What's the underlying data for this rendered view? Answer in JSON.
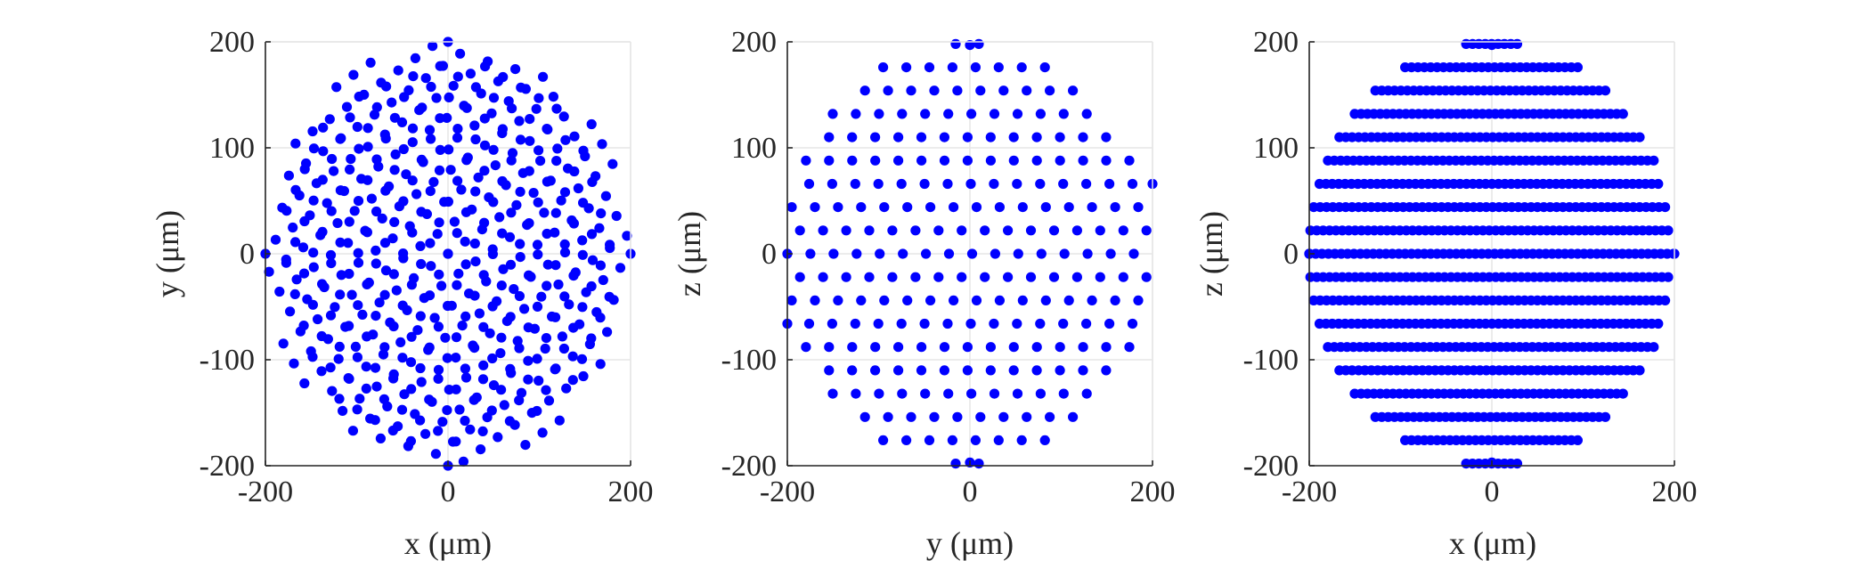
{
  "figure": {
    "marker_color": "#0000ff",
    "axis_color": "#262626",
    "grid_color": "#e6e6e6"
  },
  "chart_data": [
    {
      "type": "scatter",
      "xlabel": "x (μm)",
      "ylabel": "y (μm)",
      "xlim": [
        -200,
        200
      ],
      "ylim": [
        -200,
        200
      ],
      "xticks": [
        -200,
        0,
        200
      ],
      "yticks": [
        -200,
        -100,
        0,
        100,
        200
      ],
      "xtick_labels": [
        "-200",
        "0",
        "200"
      ],
      "ytick_labels": [
        "-200",
        "-100",
        "0",
        "100",
        "200"
      ],
      "grid": true,
      "points_note": "dense spherical point cloud projected onto x-y; points fill a disc of radius 200 μm, densest near the centre",
      "generator": {
        "kind": "xy_projection",
        "spacing": 22,
        "radius": 200
      }
    },
    {
      "type": "scatter",
      "xlabel": "y (μm)",
      "ylabel": "z (μm)",
      "xlim": [
        -200,
        200
      ],
      "ylim": [
        -200,
        200
      ],
      "xticks": [
        -200,
        0,
        200
      ],
      "yticks": [
        -200,
        -100,
        0,
        100,
        200
      ],
      "xtick_labels": [
        "-200",
        "0",
        "200"
      ],
      "ytick_labels": [
        "-200",
        "-100",
        "0",
        "100",
        "200"
      ],
      "grid": true,
      "points_note": "points arranged on horizontal layers spaced ~22 μm in z, within a diamond / circle of radius 200 μm",
      "generator": {
        "kind": "yz_projection",
        "spacing": 22,
        "radius": 200
      }
    },
    {
      "type": "scatter",
      "xlabel": "x (μm)",
      "ylabel": "z (μm)",
      "xlim": [
        -200,
        200
      ],
      "ylim": [
        -200,
        200
      ],
      "xticks": [
        -200,
        0,
        200
      ],
      "yticks": [
        -200,
        -100,
        0,
        100,
        200
      ],
      "xtick_labels": [
        "-200",
        "0",
        "200"
      ],
      "ytick_labels": [
        "-200",
        "-100",
        "0",
        "100",
        "200"
      ],
      "grid": true,
      "points_note": "dense horizontal layers spaced ~22 μm in z, points nearly continuous along x, within radius 200 μm",
      "generator": {
        "kind": "xz_projection",
        "spacing": 22,
        "radius": 200
      }
    }
  ]
}
